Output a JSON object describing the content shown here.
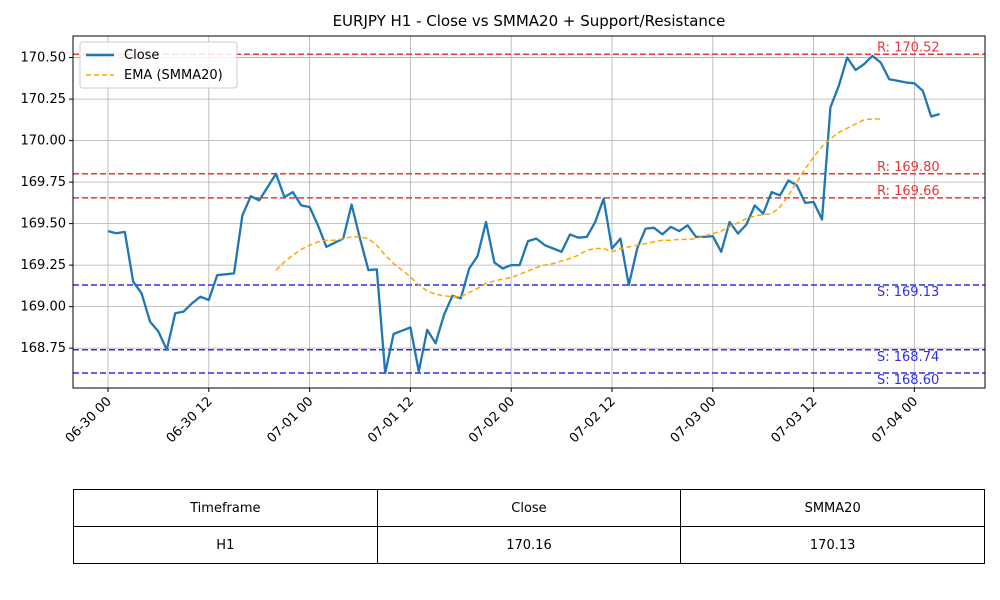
{
  "chart_data": {
    "type": "line",
    "title": "EURJPY H1 - Close vs SMMA20 + Support/Resistance",
    "xlabel": "",
    "ylabel": "",
    "x_ticks": [
      "06-30 00",
      "06-30 12",
      "07-01 00",
      "07-01 12",
      "07-02 00",
      "07-02 12",
      "07-03 00",
      "07-03 12",
      "07-04 00"
    ],
    "y_ticks": [
      "168.75",
      "169.00",
      "169.25",
      "169.50",
      "169.75",
      "170.00",
      "170.25",
      "170.50"
    ],
    "ylim": [
      168.51,
      170.63
    ],
    "grid": true,
    "legend_position": "top-left",
    "series": [
      {
        "name": "Close",
        "color": "#1f77b4",
        "style": "solid",
        "start_hour": 0,
        "values": [
          169.455,
          169.442,
          169.45,
          169.15,
          169.08,
          168.91,
          168.85,
          168.74,
          168.96,
          168.97,
          169.02,
          169.06,
          169.04,
          169.19,
          169.195,
          169.2,
          169.55,
          169.665,
          169.64,
          169.72,
          169.8,
          169.66,
          169.69,
          169.61,
          169.6,
          169.49,
          169.36,
          169.385,
          169.41,
          169.615,
          169.41,
          169.22,
          169.225,
          168.6,
          168.835,
          168.855,
          168.875,
          168.61,
          168.86,
          168.78,
          168.95,
          169.065,
          169.05,
          169.23,
          169.305,
          169.51,
          169.265,
          169.23,
          169.25,
          169.25,
          169.395,
          169.41,
          169.37,
          169.35,
          169.33,
          169.435,
          169.415,
          169.42,
          169.51,
          169.65,
          169.35,
          169.41,
          169.13,
          169.35,
          169.47,
          169.475,
          169.435,
          169.48,
          169.455,
          169.49,
          169.42,
          169.42,
          169.425,
          169.33,
          169.51,
          169.44,
          169.495,
          169.61,
          169.56,
          169.69,
          169.67,
          169.76,
          169.73,
          169.625,
          169.63,
          169.525,
          170.2,
          170.33,
          170.5,
          170.425,
          170.46,
          170.51,
          170.47,
          170.37,
          170.36,
          170.35,
          170.345,
          170.3,
          170.145,
          170.16
        ]
      },
      {
        "name": "EMA (SMMA20)",
        "color": "#ffa500",
        "style": "dashed",
        "start_hour": 20,
        "values": [
          169.22,
          169.27,
          169.31,
          169.345,
          169.37,
          169.39,
          169.4,
          169.4,
          169.41,
          169.42,
          169.42,
          169.41,
          169.37,
          169.31,
          169.26,
          169.22,
          169.18,
          169.13,
          169.095,
          169.075,
          169.065,
          169.06,
          169.06,
          169.085,
          169.11,
          169.14,
          169.155,
          169.165,
          169.175,
          169.195,
          169.215,
          169.235,
          169.25,
          169.26,
          169.275,
          169.29,
          169.31,
          169.34,
          169.35,
          169.35,
          169.33,
          169.35,
          169.36,
          169.37,
          169.38,
          169.39,
          169.4,
          169.4,
          169.405,
          169.405,
          169.41,
          169.425,
          169.44,
          169.455,
          169.48,
          169.505,
          169.53,
          169.545,
          169.555,
          169.56,
          169.6,
          169.67,
          169.75,
          169.83,
          169.9,
          169.965,
          170.01,
          170.05,
          170.075,
          170.1,
          170.125,
          170.13,
          170.13
        ]
      }
    ],
    "resistance": [
      {
        "label": "R: 170.52",
        "value": 170.52
      },
      {
        "label": "R: 169.80",
        "value": 169.8
      },
      {
        "label": "R: 169.66",
        "value": 169.655
      }
    ],
    "support": [
      {
        "label": "S: 169.13",
        "value": 169.13
      },
      {
        "label": "S: 168.74",
        "value": 168.74
      },
      {
        "label": "S: 168.60",
        "value": 168.6
      }
    ],
    "colors": {
      "resistance": "#e8373a",
      "support": "#3030e0",
      "grid": "#b0b0b0"
    }
  },
  "table": {
    "headers": [
      "Timeframe",
      "Close",
      "SMMA20"
    ],
    "rows": [
      [
        "H1",
        "170.16",
        "170.13"
      ]
    ]
  }
}
